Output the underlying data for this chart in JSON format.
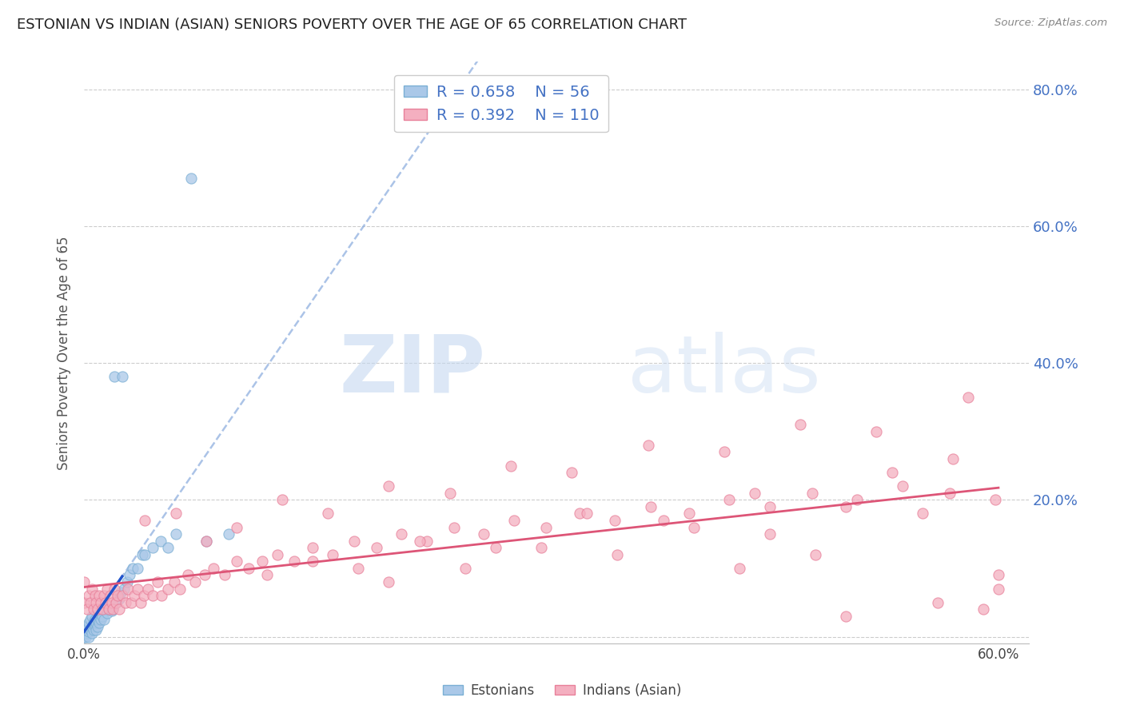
{
  "title": "ESTONIAN VS INDIAN (ASIAN) SENIORS POVERTY OVER THE AGE OF 65 CORRELATION CHART",
  "source": "Source: ZipAtlas.com",
  "ylabel": "Seniors Poverty Over the Age of 65",
  "xlim": [
    0.0,
    0.62
  ],
  "ylim": [
    -0.01,
    0.84
  ],
  "xtick_vals": [
    0.0,
    0.1,
    0.2,
    0.3,
    0.4,
    0.5,
    0.6
  ],
  "xtick_labels": [
    "0.0%",
    "",
    "",
    "",
    "",
    "",
    "60.0%"
  ],
  "ytick_vals": [
    0.0,
    0.2,
    0.4,
    0.6,
    0.8
  ],
  "ytick_labels_right": [
    "",
    "20.0%",
    "40.0%",
    "60.0%",
    "80.0%"
  ],
  "grid_color": "#cccccc",
  "background_color": "#ffffff",
  "estonian_color": "#aac8e8",
  "estonian_edge": "#7aafd4",
  "indian_color": "#f4afc0",
  "indian_edge": "#e8809a",
  "estonian_trend_color": "#2255cc",
  "estonian_trend_dash_color": "#88aadd",
  "indian_trend_color": "#dd5577",
  "R_estonian": 0.658,
  "N_estonian": 56,
  "R_indian": 0.392,
  "N_indian": 110,
  "legend_label_estonian": "Estonians",
  "legend_label_indian": "Indians (Asian)",
  "watermark_zip": "ZIP",
  "watermark_atlas": "atlas",
  "estonian_pts_x": [
    0.0,
    0.0,
    0.0,
    0.0,
    0.0,
    0.001,
    0.001,
    0.002,
    0.002,
    0.003,
    0.003,
    0.003,
    0.004,
    0.004,
    0.005,
    0.005,
    0.005,
    0.006,
    0.006,
    0.007,
    0.007,
    0.008,
    0.008,
    0.009,
    0.009,
    0.01,
    0.01,
    0.011,
    0.012,
    0.013,
    0.014,
    0.015,
    0.016,
    0.017,
    0.018,
    0.019,
    0.02,
    0.021,
    0.022,
    0.023,
    0.024,
    0.025,
    0.026,
    0.028,
    0.03,
    0.032,
    0.035,
    0.038,
    0.04,
    0.045,
    0.05,
    0.055,
    0.06,
    0.07,
    0.08,
    0.095
  ],
  "estonian_pts_y": [
    0.0,
    0.005,
    0.008,
    0.01,
    0.015,
    0.0,
    0.01,
    0.005,
    0.015,
    0.0,
    0.008,
    0.02,
    0.01,
    0.025,
    0.005,
    0.015,
    0.03,
    0.01,
    0.02,
    0.015,
    0.025,
    0.01,
    0.02,
    0.015,
    0.025,
    0.02,
    0.035,
    0.025,
    0.03,
    0.025,
    0.04,
    0.035,
    0.04,
    0.045,
    0.038,
    0.04,
    0.38,
    0.05,
    0.06,
    0.055,
    0.065,
    0.38,
    0.07,
    0.08,
    0.09,
    0.1,
    0.1,
    0.12,
    0.12,
    0.13,
    0.14,
    0.13,
    0.15,
    0.67,
    0.14,
    0.15
  ],
  "indian_pts_x": [
    0.0,
    0.0,
    0.002,
    0.003,
    0.004,
    0.005,
    0.006,
    0.007,
    0.008,
    0.009,
    0.01,
    0.011,
    0.012,
    0.013,
    0.014,
    0.015,
    0.016,
    0.017,
    0.018,
    0.019,
    0.02,
    0.021,
    0.022,
    0.023,
    0.025,
    0.027,
    0.029,
    0.031,
    0.033,
    0.035,
    0.037,
    0.039,
    0.042,
    0.045,
    0.048,
    0.051,
    0.055,
    0.059,
    0.063,
    0.068,
    0.073,
    0.079,
    0.085,
    0.092,
    0.1,
    0.108,
    0.117,
    0.127,
    0.138,
    0.15,
    0.163,
    0.177,
    0.192,
    0.208,
    0.225,
    0.243,
    0.262,
    0.282,
    0.303,
    0.325,
    0.348,
    0.372,
    0.397,
    0.423,
    0.45,
    0.478,
    0.507,
    0.537,
    0.568,
    0.598,
    0.04,
    0.06,
    0.08,
    0.1,
    0.13,
    0.16,
    0.2,
    0.24,
    0.28,
    0.32,
    0.37,
    0.42,
    0.47,
    0.52,
    0.2,
    0.25,
    0.3,
    0.35,
    0.4,
    0.45,
    0.5,
    0.55,
    0.58,
    0.12,
    0.15,
    0.18,
    0.22,
    0.27,
    0.33,
    0.38,
    0.44,
    0.5,
    0.56,
    0.59,
    0.6,
    0.6,
    0.57,
    0.53,
    0.48,
    0.43
  ],
  "indian_pts_y": [
    0.05,
    0.08,
    0.04,
    0.06,
    0.05,
    0.07,
    0.04,
    0.06,
    0.05,
    0.04,
    0.06,
    0.05,
    0.04,
    0.06,
    0.05,
    0.07,
    0.04,
    0.06,
    0.05,
    0.04,
    0.07,
    0.05,
    0.06,
    0.04,
    0.06,
    0.05,
    0.07,
    0.05,
    0.06,
    0.07,
    0.05,
    0.06,
    0.07,
    0.06,
    0.08,
    0.06,
    0.07,
    0.08,
    0.07,
    0.09,
    0.08,
    0.09,
    0.1,
    0.09,
    0.11,
    0.1,
    0.11,
    0.12,
    0.11,
    0.13,
    0.12,
    0.14,
    0.13,
    0.15,
    0.14,
    0.16,
    0.15,
    0.17,
    0.16,
    0.18,
    0.17,
    0.19,
    0.18,
    0.2,
    0.19,
    0.21,
    0.2,
    0.22,
    0.21,
    0.2,
    0.17,
    0.18,
    0.14,
    0.16,
    0.2,
    0.18,
    0.22,
    0.21,
    0.25,
    0.24,
    0.28,
    0.27,
    0.31,
    0.3,
    0.08,
    0.1,
    0.13,
    0.12,
    0.16,
    0.15,
    0.19,
    0.18,
    0.35,
    0.09,
    0.11,
    0.1,
    0.14,
    0.13,
    0.18,
    0.17,
    0.21,
    0.03,
    0.05,
    0.04,
    0.07,
    0.09,
    0.26,
    0.24,
    0.12,
    0.1
  ]
}
